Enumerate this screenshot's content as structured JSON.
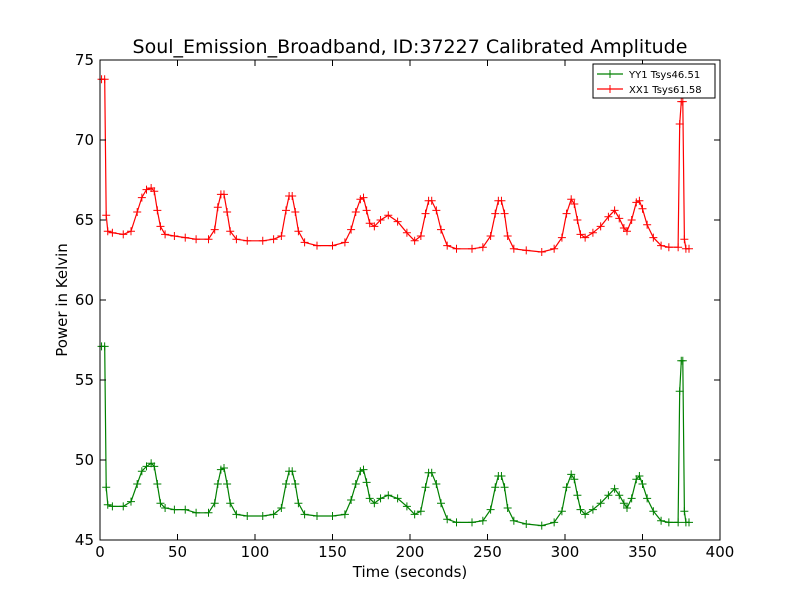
{
  "chart_data": {
    "type": "line",
    "title": "Soul_Emission_Broadband, ID:37227 Calibrated Amplitude",
    "xlabel": "Time (seconds)",
    "ylabel": "Power in Kelvin",
    "xlim": [
      0,
      400
    ],
    "ylim": [
      45,
      75
    ],
    "xticks": [
      0,
      50,
      100,
      150,
      200,
      250,
      300,
      350,
      400
    ],
    "yticks": [
      45,
      50,
      55,
      60,
      65,
      70,
      75
    ],
    "marker": "+",
    "legend_position": "top-right",
    "series": [
      {
        "name": "YY1 Tsys46.51",
        "color": "#008000",
        "points": [
          [
            1,
            57.1
          ],
          [
            3,
            57.1
          ],
          [
            4,
            48.3
          ],
          [
            5,
            47.2
          ],
          [
            8,
            47.1
          ],
          [
            15,
            47.1
          ],
          [
            20,
            47.4
          ],
          [
            24,
            48.5
          ],
          [
            27,
            49.3
          ],
          [
            30,
            49.6
          ],
          [
            33,
            49.8
          ],
          [
            35,
            49.6
          ],
          [
            37,
            48.5
          ],
          [
            39,
            47.3
          ],
          [
            42,
            47.0
          ],
          [
            48,
            46.9
          ],
          [
            55,
            46.9
          ],
          [
            62,
            46.7
          ],
          [
            70,
            46.7
          ],
          [
            74,
            47.3
          ],
          [
            76,
            48.5
          ],
          [
            78,
            49.4
          ],
          [
            80,
            49.5
          ],
          [
            82,
            48.5
          ],
          [
            84,
            47.3
          ],
          [
            88,
            46.6
          ],
          [
            95,
            46.5
          ],
          [
            105,
            46.5
          ],
          [
            112,
            46.6
          ],
          [
            117,
            47.0
          ],
          [
            120,
            48.5
          ],
          [
            122,
            49.3
          ],
          [
            124,
            49.3
          ],
          [
            126,
            48.5
          ],
          [
            128,
            47.3
          ],
          [
            132,
            46.6
          ],
          [
            140,
            46.5
          ],
          [
            150,
            46.5
          ],
          [
            158,
            46.6
          ],
          [
            162,
            47.5
          ],
          [
            165,
            48.5
          ],
          [
            168,
            49.3
          ],
          [
            170,
            49.4
          ],
          [
            172,
            48.6
          ],
          [
            174,
            47.6
          ],
          [
            177,
            47.3
          ],
          [
            181,
            47.6
          ],
          [
            186,
            47.8
          ],
          [
            192,
            47.6
          ],
          [
            198,
            47.1
          ],
          [
            203,
            46.6
          ],
          [
            207,
            46.8
          ],
          [
            210,
            48.3
          ],
          [
            212,
            49.2
          ],
          [
            214,
            49.2
          ],
          [
            217,
            48.5
          ],
          [
            220,
            47.3
          ],
          [
            224,
            46.3
          ],
          [
            230,
            46.1
          ],
          [
            240,
            46.1
          ],
          [
            247,
            46.2
          ],
          [
            252,
            46.9
          ],
          [
            255,
            48.3
          ],
          [
            257,
            49.0
          ],
          [
            259,
            49.0
          ],
          [
            261,
            48.3
          ],
          [
            263,
            47.0
          ],
          [
            267,
            46.2
          ],
          [
            275,
            46.0
          ],
          [
            285,
            45.9
          ],
          [
            293,
            46.1
          ],
          [
            298,
            46.8
          ],
          [
            301,
            48.3
          ],
          [
            304,
            49.1
          ],
          [
            306,
            48.8
          ],
          [
            308,
            47.8
          ],
          [
            310,
            46.9
          ],
          [
            313,
            46.6
          ],
          [
            318,
            46.9
          ],
          [
            323,
            47.3
          ],
          [
            328,
            47.8
          ],
          [
            332,
            48.2
          ],
          [
            335,
            47.8
          ],
          [
            338,
            47.3
          ],
          [
            340,
            47.0
          ],
          [
            343,
            47.6
          ],
          [
            346,
            48.8
          ],
          [
            348,
            49.0
          ],
          [
            350,
            48.5
          ],
          [
            353,
            47.6
          ],
          [
            357,
            46.8
          ],
          [
            362,
            46.2
          ],
          [
            367,
            46.1
          ],
          [
            373,
            46.1
          ],
          [
            374,
            54.3
          ],
          [
            375,
            56.2
          ],
          [
            376,
            56.2
          ],
          [
            377,
            46.8
          ],
          [
            378,
            46.1
          ],
          [
            380,
            46.1
          ]
        ]
      },
      {
        "name": "XX1 Tsys61.58",
        "color": "#ff0000",
        "points": [
          [
            1,
            73.8
          ],
          [
            3,
            73.8
          ],
          [
            4,
            65.3
          ],
          [
            5,
            64.3
          ],
          [
            8,
            64.2
          ],
          [
            15,
            64.1
          ],
          [
            20,
            64.3
          ],
          [
            24,
            65.5
          ],
          [
            27,
            66.4
          ],
          [
            30,
            66.9
          ],
          [
            33,
            67.0
          ],
          [
            35,
            66.8
          ],
          [
            37,
            65.6
          ],
          [
            39,
            64.6
          ],
          [
            42,
            64.1
          ],
          [
            48,
            64.0
          ],
          [
            55,
            63.9
          ],
          [
            62,
            63.8
          ],
          [
            70,
            63.8
          ],
          [
            74,
            64.4
          ],
          [
            76,
            65.8
          ],
          [
            78,
            66.6
          ],
          [
            80,
            66.6
          ],
          [
            82,
            65.5
          ],
          [
            84,
            64.3
          ],
          [
            88,
            63.8
          ],
          [
            95,
            63.7
          ],
          [
            105,
            63.7
          ],
          [
            112,
            63.8
          ],
          [
            117,
            64.0
          ],
          [
            120,
            65.6
          ],
          [
            122,
            66.5
          ],
          [
            124,
            66.5
          ],
          [
            126,
            65.5
          ],
          [
            128,
            64.3
          ],
          [
            132,
            63.6
          ],
          [
            140,
            63.4
          ],
          [
            150,
            63.4
          ],
          [
            158,
            63.6
          ],
          [
            162,
            64.4
          ],
          [
            165,
            65.5
          ],
          [
            168,
            66.3
          ],
          [
            170,
            66.4
          ],
          [
            172,
            65.6
          ],
          [
            174,
            64.8
          ],
          [
            177,
            64.6
          ],
          [
            181,
            65.0
          ],
          [
            186,
            65.3
          ],
          [
            192,
            64.9
          ],
          [
            198,
            64.2
          ],
          [
            203,
            63.7
          ],
          [
            207,
            64.0
          ],
          [
            210,
            65.4
          ],
          [
            212,
            66.2
          ],
          [
            214,
            66.2
          ],
          [
            217,
            65.6
          ],
          [
            220,
            64.4
          ],
          [
            224,
            63.4
          ],
          [
            230,
            63.2
          ],
          [
            240,
            63.2
          ],
          [
            247,
            63.3
          ],
          [
            252,
            64.0
          ],
          [
            255,
            65.4
          ],
          [
            257,
            66.2
          ],
          [
            259,
            66.2
          ],
          [
            261,
            65.4
          ],
          [
            263,
            64.0
          ],
          [
            267,
            63.2
          ],
          [
            275,
            63.1
          ],
          [
            285,
            63.0
          ],
          [
            293,
            63.2
          ],
          [
            298,
            63.9
          ],
          [
            301,
            65.4
          ],
          [
            304,
            66.3
          ],
          [
            306,
            66.0
          ],
          [
            308,
            65.0
          ],
          [
            310,
            64.1
          ],
          [
            313,
            63.9
          ],
          [
            318,
            64.2
          ],
          [
            323,
            64.6
          ],
          [
            328,
            65.2
          ],
          [
            332,
            65.6
          ],
          [
            335,
            65.1
          ],
          [
            338,
            64.5
          ],
          [
            340,
            64.3
          ],
          [
            343,
            65.0
          ],
          [
            346,
            66.1
          ],
          [
            348,
            66.2
          ],
          [
            350,
            65.7
          ],
          [
            353,
            64.7
          ],
          [
            357,
            63.9
          ],
          [
            362,
            63.4
          ],
          [
            367,
            63.3
          ],
          [
            373,
            63.3
          ],
          [
            374,
            71.0
          ],
          [
            375,
            72.4
          ],
          [
            376,
            72.4
          ],
          [
            377,
            63.8
          ],
          [
            378,
            63.2
          ],
          [
            380,
            63.2
          ]
        ]
      }
    ]
  }
}
